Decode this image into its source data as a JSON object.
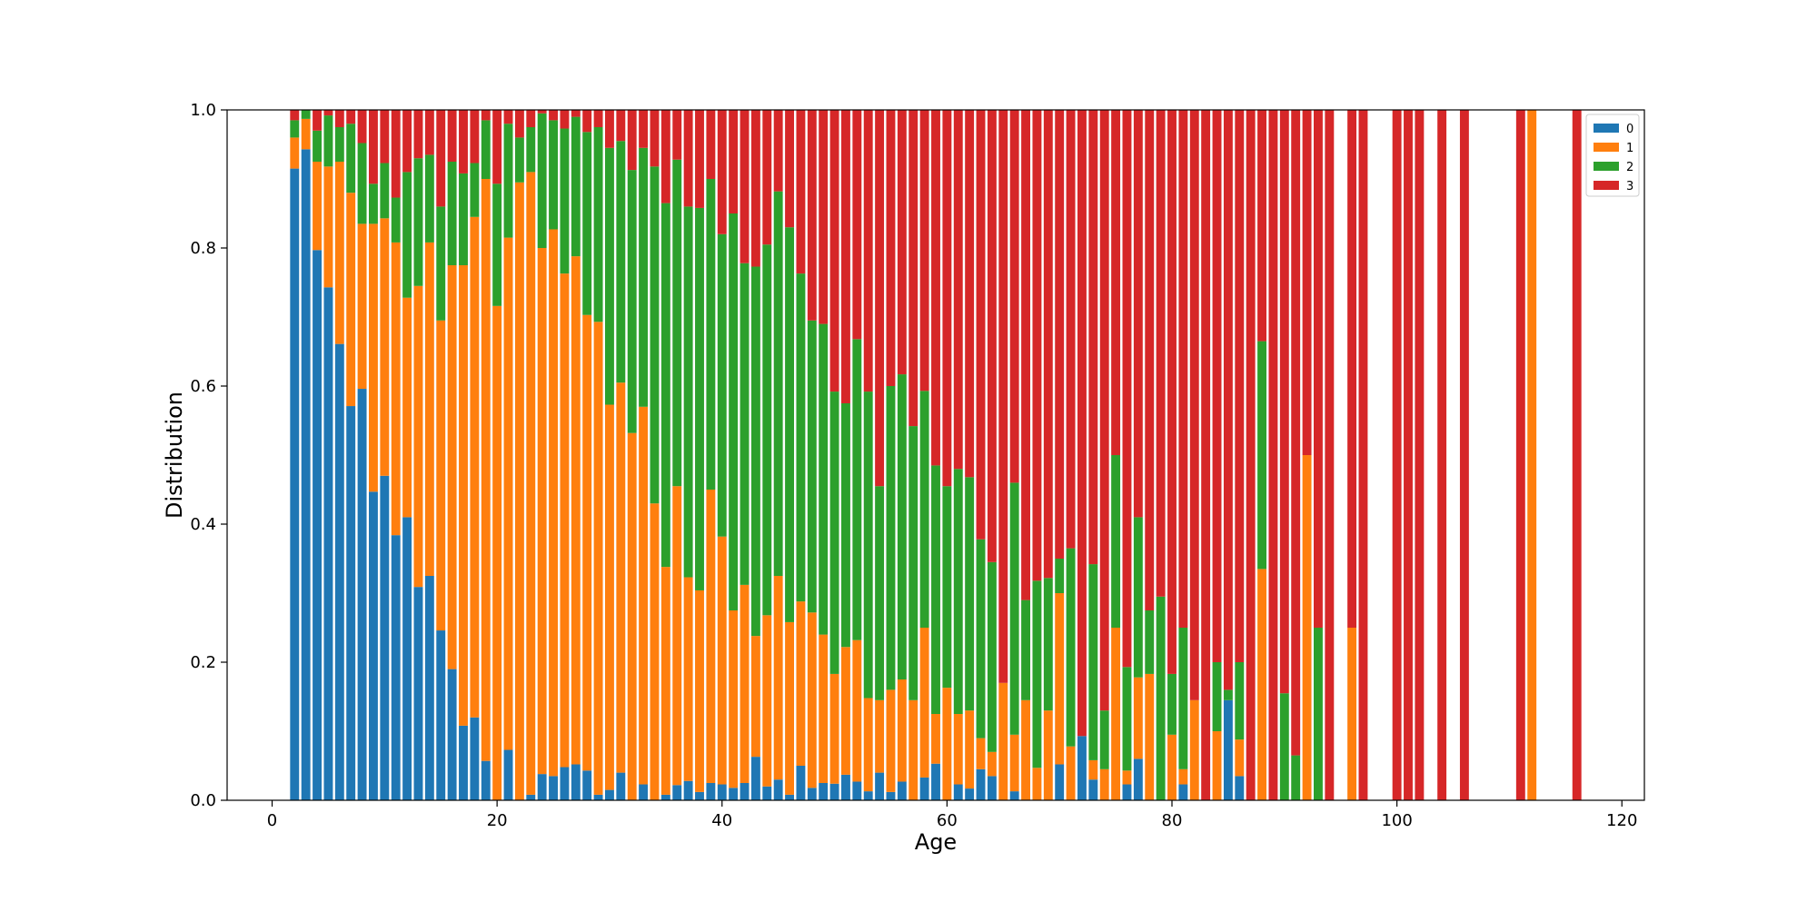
{
  "chart_data": {
    "type": "bar",
    "stacked": true,
    "normalized": true,
    "title": "",
    "xlabel": "Age",
    "ylabel": "Distribution",
    "xlim": [
      -4,
      122
    ],
    "ylim": [
      0,
      1
    ],
    "xticks": [
      0,
      20,
      40,
      60,
      80,
      100,
      120
    ],
    "yticks": [
      "0.0",
      "0.2",
      "0.4",
      "0.6",
      "0.8",
      "1.0"
    ],
    "grid": false,
    "legend_position": "top-right",
    "series": [
      {
        "name": "0",
        "color": "#1f77b4"
      },
      {
        "name": "1",
        "color": "#ff7f0e"
      },
      {
        "name": "2",
        "color": "#2ca02c"
      },
      {
        "name": "3",
        "color": "#d62728"
      }
    ],
    "x": [
      2,
      3,
      4,
      5,
      6,
      7,
      8,
      9,
      10,
      11,
      12,
      13,
      14,
      15,
      16,
      17,
      18,
      19,
      20,
      21,
      22,
      23,
      24,
      25,
      26,
      27,
      28,
      29,
      30,
      31,
      32,
      33,
      34,
      35,
      36,
      37,
      38,
      39,
      40,
      41,
      42,
      43,
      44,
      45,
      46,
      47,
      48,
      49,
      50,
      51,
      52,
      53,
      54,
      55,
      56,
      57,
      58,
      59,
      60,
      61,
      62,
      63,
      64,
      65,
      66,
      67,
      68,
      69,
      70,
      71,
      72,
      73,
      74,
      75,
      76,
      77,
      78,
      79,
      80,
      81,
      82,
      83,
      84,
      85,
      86,
      87,
      88,
      89,
      90,
      91,
      92,
      93,
      94,
      96,
      97,
      100,
      101,
      102,
      104,
      106,
      111,
      112,
      116
    ],
    "cumulative": {
      "c0": [
        0.915,
        0.943,
        0.797,
        0.743,
        0.661,
        0.571,
        0.596,
        0.447,
        0.47,
        0.384,
        0.41,
        0.309,
        0.325,
        0.246,
        0.19,
        0.108,
        0.12,
        0.057,
        0.0,
        0.073,
        0.0,
        0.008,
        0.038,
        0.035,
        0.048,
        0.052,
        0.043,
        0.008,
        0.015,
        0.04,
        0.0,
        0.023,
        0.0,
        0.008,
        0.022,
        0.028,
        0.012,
        0.025,
        0.023,
        0.018,
        0.025,
        0.063,
        0.02,
        0.03,
        0.008,
        0.05,
        0.018,
        0.025,
        0.024,
        0.037,
        0.027,
        0.013,
        0.04,
        0.012,
        0.027,
        0.0,
        0.033,
        0.053,
        0.0,
        0.023,
        0.017,
        0.045,
        0.035,
        0.0,
        0.013,
        0.0,
        0.0,
        0.0,
        0.052,
        0.0,
        0.093,
        0.03,
        0.0,
        0.0,
        0.023,
        0.06,
        0.0,
        0.0,
        0.0,
        0.023,
        0.0,
        0.0,
        0.0,
        0.145,
        0.035,
        0.0,
        0.0,
        0.0,
        0.0,
        0.0,
        0.0,
        0.0,
        0.0,
        0.0,
        0.0,
        0.0,
        0.0,
        0.0,
        0.0,
        0.0,
        0.0,
        0.0,
        0.0
      ],
      "c1": [
        0.96,
        0.987,
        0.925,
        0.918,
        0.925,
        0.88,
        0.835,
        0.835,
        0.843,
        0.808,
        0.728,
        0.745,
        0.808,
        0.695,
        0.775,
        0.775,
        0.845,
        0.9,
        0.716,
        0.815,
        0.895,
        0.91,
        0.8,
        0.827,
        0.763,
        0.788,
        0.703,
        0.693,
        0.573,
        0.605,
        0.532,
        0.57,
        0.43,
        0.338,
        0.455,
        0.323,
        0.304,
        0.45,
        0.382,
        0.275,
        0.312,
        0.238,
        0.268,
        0.325,
        0.258,
        0.288,
        0.272,
        0.24,
        0.183,
        0.222,
        0.232,
        0.148,
        0.145,
        0.16,
        0.175,
        0.145,
        0.25,
        0.125,
        0.163,
        0.125,
        0.13,
        0.09,
        0.07,
        0.17,
        0.095,
        0.145,
        0.047,
        0.13,
        0.3,
        0.078,
        0.093,
        0.058,
        0.045,
        0.25,
        0.043,
        0.178,
        0.183,
        0.0,
        0.095,
        0.045,
        0.145,
        0.0,
        0.1,
        0.145,
        0.088,
        0.0,
        0.335,
        0.0,
        0.0,
        0.0,
        0.5,
        0.0,
        0.0,
        0.25,
        0.0,
        0.0,
        0.0,
        0.0,
        0.0,
        0.0,
        0.0,
        1.0,
        0.0
      ],
      "c2": [
        0.985,
        1.0,
        0.97,
        0.992,
        0.975,
        0.98,
        0.952,
        0.893,
        0.923,
        0.873,
        0.91,
        0.93,
        0.935,
        0.86,
        0.925,
        0.908,
        0.923,
        0.985,
        0.893,
        0.98,
        0.96,
        0.975,
        0.995,
        0.985,
        0.973,
        0.99,
        0.968,
        0.975,
        0.945,
        0.955,
        0.913,
        0.945,
        0.918,
        0.865,
        0.928,
        0.86,
        0.858,
        0.9,
        0.82,
        0.85,
        0.778,
        0.773,
        0.805,
        0.882,
        0.83,
        0.763,
        0.695,
        0.69,
        0.592,
        0.575,
        0.668,
        0.592,
        0.455,
        0.6,
        0.617,
        0.542,
        0.593,
        0.485,
        0.455,
        0.48,
        0.468,
        0.378,
        0.345,
        0.17,
        0.46,
        0.29,
        0.318,
        0.322,
        0.35,
        0.365,
        0.093,
        0.342,
        0.13,
        0.5,
        0.193,
        0.41,
        0.275,
        0.295,
        0.183,
        0.25,
        0.145,
        0.0,
        0.2,
        0.16,
        0.2,
        0.0,
        0.665,
        0.0,
        0.155,
        0.065,
        0.5,
        0.25,
        0.0,
        0.25,
        0.0,
        0.0,
        0.0,
        0.0,
        0.0,
        0.0,
        0.0,
        1.0,
        0.0
      ]
    }
  }
}
